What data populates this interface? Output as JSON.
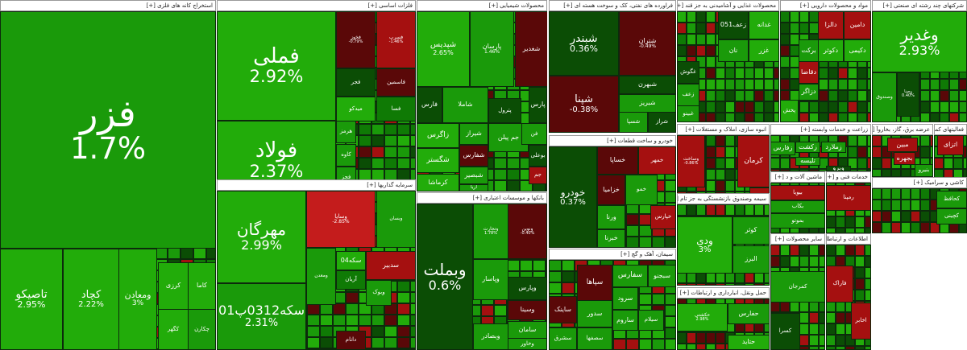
{
  "colors": {
    "bright_green": "#22ac0a",
    "green": "#1a9a0a",
    "mid_green": "#0f7a05",
    "dark_green": "#0b4d05",
    "dark_red": "#5a0808",
    "red": "#a51010",
    "bright_red": "#c41c1c"
  },
  "sectors": [
    {
      "name": "استخراج کانه های فلزی [+]",
      "tiles": [
        {
          "name": "فزر",
          "pct": "1.7%",
          "c": "green"
        },
        {
          "name": "تاصیکو",
          "pct": "2.95%",
          "c": "bright_green"
        },
        {
          "name": "کچاد",
          "pct": "2.22%",
          "c": "bright_green"
        },
        {
          "name": "ومعادن",
          "pct": "3%",
          "c": "bright_green"
        },
        {
          "name": "کرزی",
          "pct": "",
          "c": "bright_green"
        },
        {
          "name": "کاما",
          "pct": "",
          "c": "bright_green"
        },
        {
          "name": "کگهر",
          "pct": "",
          "c": "bright_green"
        },
        {
          "name": "چکارن",
          "pct": "",
          "c": "green"
        }
      ]
    },
    {
      "name": "فلزات اساسی [+]",
      "tiles": [
        {
          "name": "فملی",
          "pct": "2.92%",
          "c": "bright_green"
        },
        {
          "name": "فولاد",
          "pct": "2.37%",
          "c": "bright_green"
        },
        {
          "name": "فخوز",
          "pct": "-0.79%",
          "c": "dark_red"
        },
        {
          "name": "فسرب",
          "pct": "-1.46%",
          "c": "red"
        },
        {
          "name": "فجر",
          "pct": "",
          "c": "dark_green"
        },
        {
          "name": "فاسمين",
          "pct": "",
          "c": "dark_red"
        },
        {
          "name": "میدکو",
          "pct": "",
          "c": "bright_green"
        },
        {
          "name": "هرمز",
          "pct": "",
          "c": "green"
        },
        {
          "name": "کاوه",
          "pct": "",
          "c": "green"
        },
        {
          "name": "فجز",
          "pct": "",
          "c": "green"
        },
        {
          "name": "فسا",
          "pct": "",
          "c": "mid_green"
        }
      ]
    },
    {
      "name": "محصولات شیمیایی [+]",
      "tiles": [
        {
          "name": "شپدیس",
          "pct": "2.65%",
          "c": "bright_green"
        },
        {
          "name": "پارسان",
          "pct": "1.46%",
          "c": "green"
        },
        {
          "name": "شغدیر",
          "pct": "",
          "c": "dark_red"
        },
        {
          "name": "فارس",
          "pct": "",
          "c": "dark_green"
        },
        {
          "name": "شاملا",
          "pct": "",
          "c": "green"
        },
        {
          "name": "جم پیلن",
          "pct": "",
          "c": "green"
        },
        {
          "name": "پارس",
          "pct": "",
          "c": "dark_green"
        },
        {
          "name": "زاگرس",
          "pct": "",
          "c": "bright_green"
        },
        {
          "name": "شگستر",
          "pct": "",
          "c": "bright_green"
        },
        {
          "name": "کرماشا",
          "pct": "",
          "c": "bright_green"
        },
        {
          "name": "شیراز",
          "pct": "",
          "c": "green"
        },
        {
          "name": "شفارس",
          "pct": "",
          "c": "dark_red"
        },
        {
          "name": "شبصیر",
          "pct": "",
          "c": "green"
        },
        {
          "name": "آریا",
          "pct": "",
          "c": "green"
        },
        {
          "name": "پترول",
          "pct": "",
          "c": "dark_green"
        },
        {
          "name": "فن",
          "pct": "",
          "c": "green"
        },
        {
          "name": "بوعلی",
          "pct": "",
          "c": "dark_green"
        },
        {
          "name": "جم",
          "pct": "",
          "c": "red"
        }
      ]
    },
    {
      "name": "فراورده های نفتی، کک و سوخت هسته ای [+]",
      "tiles": [
        {
          "name": "شبندر",
          "pct": "0.36%",
          "c": "dark_green"
        },
        {
          "name": "شتران",
          "pct": "-0.49%",
          "c": "dark_red"
        },
        {
          "name": "شپنا",
          "pct": "-0.38%",
          "c": "dark_red"
        },
        {
          "name": "شبهرن",
          "pct": "",
          "c": "dark_green"
        },
        {
          "name": "شبریز",
          "pct": "",
          "c": "green"
        },
        {
          "name": "شراز",
          "pct": "",
          "c": "dark_green"
        },
        {
          "name": "شسپا",
          "pct": "",
          "c": "green"
        }
      ]
    },
    {
      "name": "محصولات غذایی و آشامیدنی به جز قند [+]",
      "tiles": [
        {
          "name": "غدانه",
          "pct": "",
          "c": "bright_green"
        },
        {
          "name": "زعف051",
          "pct": "",
          "c": "dark_green"
        },
        {
          "name": "نان",
          "pct": "",
          "c": "green"
        },
        {
          "name": "غزر",
          "pct": "",
          "c": "bright_green"
        },
        {
          "name": "غگوش",
          "pct": "",
          "c": "dark_green"
        },
        {
          "name": "زعف",
          "pct": "",
          "c": "green"
        },
        {
          "name": "غبینو",
          "pct": "",
          "c": "green"
        }
      ]
    },
    {
      "name": "مواد و محصولات دارویی [+]",
      "tiles": [
        {
          "name": "دامین",
          "pct": "",
          "c": "red"
        },
        {
          "name": "دالزا",
          "pct": "",
          "c": "red"
        },
        {
          "name": "دکوثر",
          "pct": "",
          "c": "bright_green"
        },
        {
          "name": "دکیمی",
          "pct": "",
          "c": "bright_green"
        },
        {
          "name": "برکت",
          "pct": "",
          "c": "green"
        },
        {
          "name": "دقاضا",
          "pct": "",
          "c": "red"
        },
        {
          "name": "دزاگر",
          "pct": "",
          "c": "green"
        },
        {
          "name": "پخش",
          "pct": "",
          "c": "bright_green"
        }
      ]
    },
    {
      "name": "شرکتهای چند رشته ای صنعتی [+]",
      "tiles": [
        {
          "name": "وغدیر",
          "pct": "2.93%",
          "c": "bright_green"
        },
        {
          "name": "وصنا",
          "pct": "0.40%",
          "c": "dark_green"
        },
        {
          "name": "وصندوق",
          "pct": "",
          "c": "green"
        }
      ]
    },
    {
      "name": "سرمایه گذاریها [+]",
      "tiles": [
        {
          "name": "مهرگان",
          "pct": "2.99%",
          "c": "bright_green"
        },
        {
          "name": "سکه0312پ01",
          "pct": "2.31%",
          "c": "green"
        },
        {
          "name": "وسایا",
          "pct": "-2.85%",
          "c": "bright_red"
        },
        {
          "name": "وبسان",
          "pct": "",
          "c": "green"
        },
        {
          "name": "ومعدن",
          "pct": "",
          "c": "green"
        },
        {
          "name": "سکه04",
          "pct": "",
          "c": "bright_green"
        },
        {
          "name": "سدبیر",
          "pct": "",
          "c": "red"
        },
        {
          "name": "آریان",
          "pct": "",
          "c": "mid_green"
        },
        {
          "name": "وبوک",
          "pct": "",
          "c": "green"
        },
        {
          "name": "دانام",
          "pct": "",
          "c": "dark_red"
        }
      ]
    },
    {
      "name": "بانکها و موسسات اعتباری [+]",
      "tiles": [
        {
          "name": "وبملت",
          "pct": "0.6%",
          "c": "dark_green"
        },
        {
          "name": "وتجارت",
          "pct": "1.78%",
          "c": "green"
        },
        {
          "name": "ونوین",
          "pct": "-0.40%",
          "c": "dark_red"
        },
        {
          "name": "وپاسار",
          "pct": "",
          "c": "green"
        },
        {
          "name": "وپارس",
          "pct": "",
          "c": "dark_green"
        },
        {
          "name": "وبصادر",
          "pct": "",
          "c": "green"
        },
        {
          "name": "وسینا",
          "pct": "",
          "c": "dark_red"
        },
        {
          "name": "سامان",
          "pct": "",
          "c": "green"
        },
        {
          "name": "وخاور",
          "pct": "",
          "c": "green"
        }
      ]
    },
    {
      "name": "خودرو و ساخت قطعات [+]",
      "tiles": [
        {
          "name": "خودرو",
          "pct": "0.37%",
          "c": "dark_green"
        },
        {
          "name": "خساپا",
          "pct": "",
          "c": "dark_red"
        },
        {
          "name": "خزامیا",
          "pct": "",
          "c": "dark_red"
        },
        {
          "name": "ورنا",
          "pct": "",
          "c": "green"
        },
        {
          "name": "خبرنا",
          "pct": "",
          "c": "green"
        },
        {
          "name": "خمهر",
          "pct": "",
          "c": "red"
        },
        {
          "name": "خمو",
          "pct": "",
          "c": "green"
        },
        {
          "name": "خپارس",
          "pct": "",
          "c": "red"
        }
      ]
    },
    {
      "name": "سیمان، آهک و گچ [+]",
      "tiles": [
        {
          "name": "سپاها",
          "pct": "",
          "c": "dark_red"
        },
        {
          "name": "سفارس",
          "pct": "",
          "c": "green"
        },
        {
          "name": "سبجنو",
          "pct": "",
          "c": "green"
        },
        {
          "name": "ساینک",
          "pct": "",
          "c": "dark_red"
        },
        {
          "name": "سرود",
          "pct": "",
          "c": "green"
        },
        {
          "name": "ساروم",
          "pct": "",
          "c": "green"
        },
        {
          "name": "سدور",
          "pct": "",
          "c": "green"
        },
        {
          "name": "سیلام",
          "pct": "",
          "c": "green"
        },
        {
          "name": "سصفها",
          "pct": "",
          "c": "green"
        },
        {
          "name": "سشرق",
          "pct": "",
          "c": "green"
        }
      ]
    },
    {
      "name": "انبوه سازی، املاک و مستغلات [+]",
      "tiles": [
        {
          "name": "وساخت",
          "pct": "-0.86%",
          "c": "red"
        },
        {
          "name": "کرمان",
          "pct": "",
          "c": "red"
        },
        {
          "name": "ثامید",
          "pct": "",
          "c": "red"
        },
        {
          "name": "وپاسار",
          "pct": "",
          "c": "green"
        }
      ]
    },
    {
      "name": "زراعت و خدمات وابسته [+]",
      "tiles": [
        {
          "name": "زفارس",
          "pct": "",
          "c": "green"
        },
        {
          "name": "زکشت",
          "pct": "",
          "c": "green"
        },
        {
          "name": "زملارد",
          "pct": "",
          "c": "green"
        },
        {
          "name": "تلیسه",
          "pct": "",
          "c": "green"
        },
        {
          "name": "وبرو",
          "pct": "",
          "c": "dark_green"
        }
      ]
    },
    {
      "name": "عرضه برق، گاز، بخاروآ [+]",
      "tiles": [
        {
          "name": "مبین",
          "pct": "",
          "c": "red"
        },
        {
          "name": "بجهره",
          "pct": "",
          "c": "red"
        },
        {
          "name": "بنیرو",
          "pct": "",
          "c": "green"
        }
      ]
    },
    {
      "name": "فعالیتهای کمکی [+]",
      "tiles": [
        {
          "name": "اتزای",
          "pct": "",
          "c": "red"
        },
        {
          "name": "حفاری",
          "pct": "",
          "c": "dark_green"
        }
      ]
    },
    {
      "name": "سیمه وصندوق بازنشستگی به جز تام [+]",
      "tiles": [
        {
          "name": "ودی",
          "pct": "3%",
          "c": "bright_green"
        },
        {
          "name": "کوثر",
          "pct": "",
          "c": "green"
        },
        {
          "name": "البرز",
          "pct": "",
          "c": "green"
        }
      ]
    },
    {
      "name": "حمل ونقل، انبارداری و ارتباطات [+]",
      "tiles": [
        {
          "name": "حکشتی",
          "pct": "2.98%",
          "c": "bright_green"
        },
        {
          "name": "حفارس",
          "pct": "",
          "c": "green"
        },
        {
          "name": "حتاید",
          "pct": "",
          "c": "bright_green"
        }
      ]
    },
    {
      "name": "ماشین آلات و د [+]",
      "tiles": [
        {
          "name": "بیویا",
          "pct": "",
          "c": "red"
        },
        {
          "name": "بکاب",
          "pct": "",
          "c": "green"
        },
        {
          "name": "بموتو",
          "pct": "",
          "c": "green"
        }
      ]
    },
    {
      "name": "خدمات فنی و [+]",
      "tiles": [
        {
          "name": "رمپنا",
          "pct": "",
          "c": "red"
        }
      ]
    },
    {
      "name": "کاشی و سرامیک [+]",
      "tiles": [
        {
          "name": "کحافظ",
          "pct": "",
          "c": "green"
        },
        {
          "name": "کچینی",
          "pct": "",
          "c": "green"
        }
      ]
    },
    {
      "name": "سایر محصولات [+]",
      "tiles": [
        {
          "name": "کمرجان",
          "pct": "",
          "c": "green"
        },
        {
          "name": "کسرا",
          "pct": "",
          "c": "dark_green"
        }
      ]
    },
    {
      "name": "اطلاعات و ارتباطات [+]",
      "tiles": [
        {
          "name": "فاراک",
          "pct": "",
          "c": "red"
        },
        {
          "name": "اخابر",
          "pct": "",
          "c": "red"
        }
      ]
    }
  ]
}
